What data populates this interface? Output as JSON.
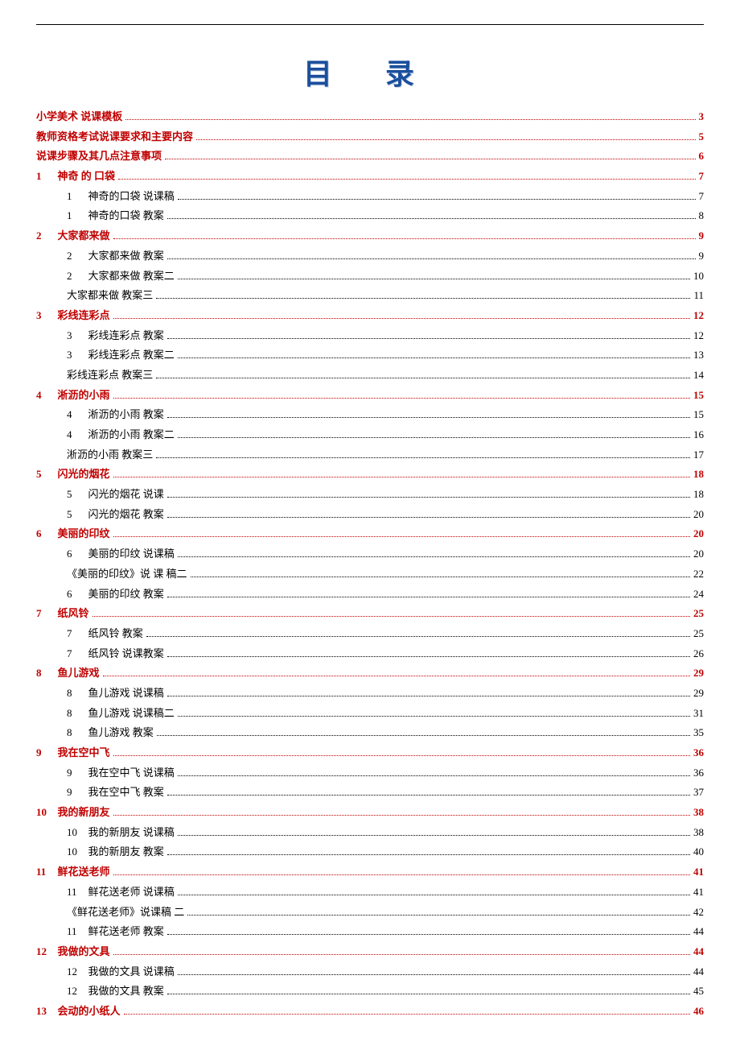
{
  "title": "目 录",
  "colors": {
    "title_color": "#1b4f9c",
    "level1_color": "#c00000",
    "level2_color": "#000000",
    "background": "#ffffff"
  },
  "typography": {
    "title_fontsize": 36,
    "body_fontsize": 13,
    "title_letter_spacing": 28
  },
  "entries": [
    {
      "level": 1,
      "num": "",
      "label": "小学美术 说课模板",
      "page": "3"
    },
    {
      "level": 1,
      "num": "",
      "label": "教师资格考试说课要求和主要内容",
      "page": "5"
    },
    {
      "level": 1,
      "num": "",
      "label": "说课步骤及其几点注意事项",
      "page": "6"
    },
    {
      "level": 1,
      "num": "1",
      "label": "神奇  的  口袋",
      "page": "7"
    },
    {
      "level": 2,
      "num": "1",
      "label": "神奇的口袋 说课稿",
      "page": "7"
    },
    {
      "level": 2,
      "num": "1",
      "label": "神奇的口袋 教案",
      "page": "8"
    },
    {
      "level": 1,
      "num": "2",
      "label": "大家都来做",
      "page": "9"
    },
    {
      "level": 2,
      "num": "2",
      "label": "大家都来做 教案",
      "page": "9"
    },
    {
      "level": 2,
      "num": "2",
      "label": "大家都来做 教案二",
      "page": "10"
    },
    {
      "level": 2,
      "num": "",
      "label": "大家都来做 教案三",
      "page": "11"
    },
    {
      "level": 1,
      "num": "3",
      "label": "彩线连彩点",
      "page": "12"
    },
    {
      "level": 2,
      "num": "3",
      "label": "彩线连彩点 教案",
      "page": "12"
    },
    {
      "level": 2,
      "num": "3",
      "label": "彩线连彩点 教案二",
      "page": "13"
    },
    {
      "level": 2,
      "num": "",
      "label": "彩线连彩点 教案三",
      "page": "14"
    },
    {
      "level": 1,
      "num": "4",
      "label": "淅沥的小雨",
      "page": "15"
    },
    {
      "level": 2,
      "num": "4",
      "label": "淅沥的小雨 教案",
      "page": "15"
    },
    {
      "level": 2,
      "num": "4",
      "label": "淅沥的小雨 教案二",
      "page": "16"
    },
    {
      "level": 2,
      "num": "",
      "label": "淅沥的小雨 教案三",
      "page": "17"
    },
    {
      "level": 1,
      "num": "5",
      "label": "闪光的烟花",
      "page": "18"
    },
    {
      "level": 2,
      "num": "5",
      "label": "闪光的烟花 说课",
      "page": "18"
    },
    {
      "level": 2,
      "num": "5",
      "label": "闪光的烟花 教案",
      "page": "20"
    },
    {
      "level": 1,
      "num": "6",
      "label": "美丽的印纹",
      "page": "20"
    },
    {
      "level": 2,
      "num": "6",
      "label": "美丽的印纹 说课稿",
      "page": "20"
    },
    {
      "level": 2,
      "num": "",
      "label": "《美丽的印纹》说  课  稿二",
      "page": "22"
    },
    {
      "level": 2,
      "num": "6",
      "label": "美丽的印纹 教案",
      "page": "24"
    },
    {
      "level": 1,
      "num": "7",
      "label": "纸风铃",
      "page": "25"
    },
    {
      "level": 2,
      "num": "7",
      "label": "纸风铃 教案",
      "page": "25"
    },
    {
      "level": 2,
      "num": "7",
      "label": "纸风铃 说课教案",
      "page": "26"
    },
    {
      "level": 1,
      "num": "8",
      "label": "鱼儿游戏",
      "page": "29"
    },
    {
      "level": 2,
      "num": "8",
      "label": "鱼儿游戏 说课稿",
      "page": "29"
    },
    {
      "level": 2,
      "num": "8",
      "label": "鱼儿游戏 说课稿二",
      "page": "31"
    },
    {
      "level": 2,
      "num": "8",
      "label": "鱼儿游戏 教案",
      "page": "35"
    },
    {
      "level": 1,
      "num": "9",
      "label": "我在空中飞",
      "page": "36"
    },
    {
      "level": 2,
      "num": "9",
      "label": "我在空中飞 说课稿",
      "page": "36"
    },
    {
      "level": 2,
      "num": "9",
      "label": "我在空中飞 教案",
      "page": "37"
    },
    {
      "level": 1,
      "num": "10",
      "label": "我的新朋友",
      "page": "38"
    },
    {
      "level": 2,
      "num": "10",
      "label": "我的新朋友 说课稿",
      "page": "38"
    },
    {
      "level": 2,
      "num": "10",
      "label": "我的新朋友 教案",
      "page": "40"
    },
    {
      "level": 1,
      "num": "11",
      "label": "鲜花送老师",
      "page": "41"
    },
    {
      "level": 2,
      "num": "11",
      "label": "鲜花送老师 说课稿",
      "page": "41"
    },
    {
      "level": 2,
      "num": "",
      "label": "《鲜花送老师》说课稿  二",
      "page": "42"
    },
    {
      "level": 2,
      "num": "11",
      "label": "鲜花送老师 教案",
      "page": "44"
    },
    {
      "level": 1,
      "num": "12",
      "label": "我做的文具",
      "page": "44"
    },
    {
      "level": 2,
      "num": "12",
      "label": "我做的文具 说课稿",
      "page": "44"
    },
    {
      "level": 2,
      "num": "12",
      "label": "我做的文具 教案",
      "page": "45"
    },
    {
      "level": 1,
      "num": "13",
      "label": "会动的小纸人",
      "page": "46"
    }
  ]
}
